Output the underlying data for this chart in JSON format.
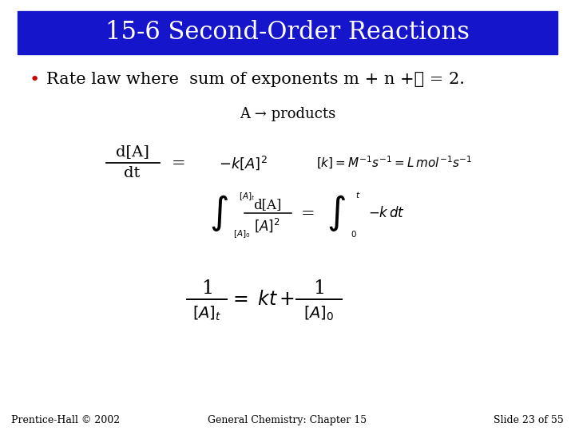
{
  "title": "15-6 Second-Order Reactions",
  "title_bg_color": "#1515CC",
  "title_text_color": "#FFFFFF",
  "bg_color": "#FFFFFF",
  "bullet_color": "#CC0000",
  "bullet_text": "Rate law where  sum of exponents m + n +⋯ = 2.",
  "reaction": "A → products",
  "footer_left": "Prentice-Hall © 2002",
  "footer_center": "General Chemistry: Chapter 15",
  "footer_right": "Slide 23 of 55",
  "title_fontsize": 22,
  "body_fontsize": 15,
  "small_fontsize": 12,
  "footer_fontsize": 9
}
